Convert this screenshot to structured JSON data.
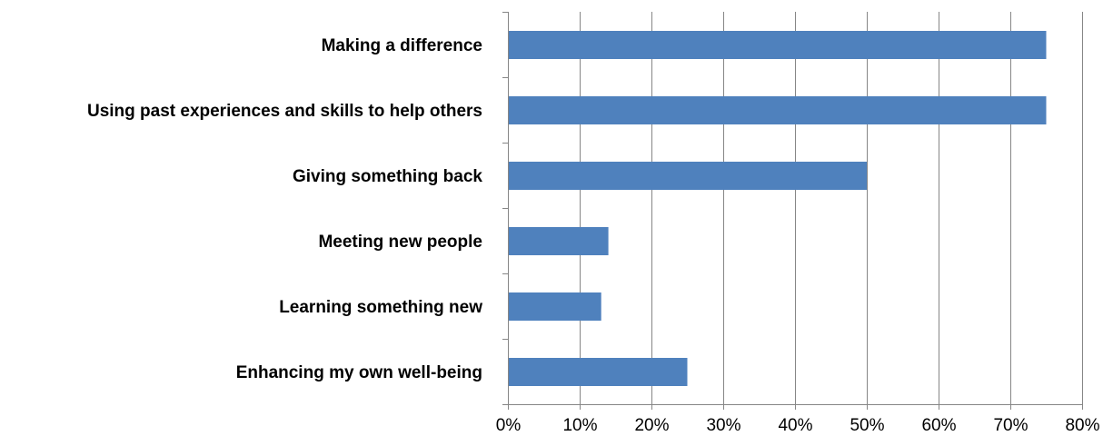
{
  "chart_data": {
    "type": "bar",
    "orientation": "horizontal",
    "categories": [
      "Making a difference",
      "Using past experiences and skills to help others",
      "Giving something back",
      "Meeting new people",
      "Learning something new",
      "Enhancing my own well-being"
    ],
    "values": [
      75,
      75,
      50,
      14,
      13,
      25
    ],
    "value_unit": "%",
    "xlim": [
      0,
      80
    ],
    "x_ticks": [
      0,
      10,
      20,
      30,
      40,
      50,
      60,
      70,
      80
    ],
    "x_tick_labels": [
      "0%",
      "10%",
      "20%",
      "30%",
      "40%",
      "50%",
      "60%",
      "70%",
      "80%"
    ],
    "title": "",
    "xlabel": "",
    "ylabel": "",
    "grid": "vertical",
    "legend": "none",
    "colors": {
      "bar": "#4F81BD",
      "grid": "#868686",
      "axis": "#868686",
      "text": "#000000"
    }
  }
}
